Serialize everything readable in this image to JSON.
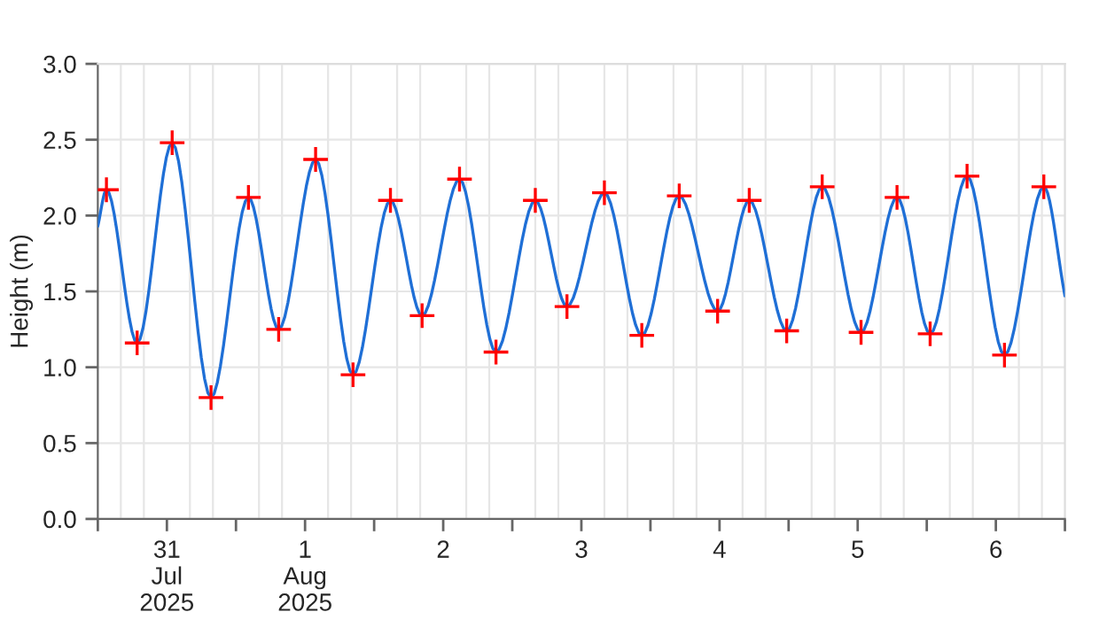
{
  "chart_data": {
    "type": "line",
    "ylabel": "Height (m)",
    "xlim": [
      "2025-07-31T00:00",
      "2025-08-07T00:00"
    ],
    "ylim": [
      0,
      3
    ],
    "yticks": [
      {
        "value": 0,
        "label": "0.0"
      },
      {
        "value": 0.5,
        "label": "0.5"
      },
      {
        "value": 1,
        "label": "1.0"
      },
      {
        "value": 1.5,
        "label": "1.5"
      },
      {
        "value": 2,
        "label": "2.0"
      },
      {
        "value": 2.5,
        "label": "2.5"
      },
      {
        "value": 3,
        "label": "3.0"
      }
    ],
    "xticks": [
      {
        "value": "2025-07-31T00:00",
        "label": null
      },
      {
        "value": "2025-07-31T12:00",
        "label": "31\nJul\n2025"
      },
      {
        "value": "2025-08-01T00:00",
        "label": null
      },
      {
        "value": "2025-08-01T12:00",
        "label": "1\nAug\n2025"
      },
      {
        "value": "2025-08-02T00:00",
        "label": null
      },
      {
        "value": "2025-08-02T12:00",
        "label": "2"
      },
      {
        "value": "2025-08-03T00:00",
        "label": null
      },
      {
        "value": "2025-08-03T12:00",
        "label": "3"
      },
      {
        "value": "2025-08-04T00:00",
        "label": null
      },
      {
        "value": "2025-08-04T12:00",
        "label": "4"
      },
      {
        "value": "2025-08-05T00:00",
        "label": null
      },
      {
        "value": "2025-08-05T12:00",
        "label": "5"
      },
      {
        "value": "2025-08-06T00:00",
        "label": null
      },
      {
        "value": "2025-08-06T12:00",
        "label": "6"
      },
      {
        "value": "2025-08-07T00:00",
        "label": null
      }
    ],
    "grid": true,
    "series": [
      {
        "type": "line",
        "color": "#1f6fd6",
        "line_style": "solid",
        "x": [
          "2025-07-31T00:00",
          "2025-07-31T01:30",
          "2025-07-31T06:50",
          "2025-07-31T12:55",
          "2025-07-31T19:40",
          "2025-08-01T02:10",
          "2025-08-01T07:25",
          "2025-08-01T13:50",
          "2025-08-01T20:20",
          "2025-08-02T02:50",
          "2025-08-02T08:20",
          "2025-08-02T14:50",
          "2025-08-02T21:10",
          "2025-08-03T04:00",
          "2025-08-03T09:30",
          "2025-08-03T16:00",
          "2025-08-03T22:30",
          "2025-08-04T05:00",
          "2025-08-04T11:40",
          "2025-08-04T17:10",
          "2025-08-04T23:40",
          "2025-08-05T05:50",
          "2025-08-05T12:35",
          "2025-08-05T18:50",
          "2025-08-06T00:35",
          "2025-08-06T07:00",
          "2025-08-06T13:30",
          "2025-08-06T20:20",
          "2025-08-07T00:00"
        ],
        "values": [
          1.93,
          2.17,
          1.16,
          2.48,
          0.8,
          2.12,
          1.25,
          2.37,
          0.95,
          2.1,
          1.34,
          2.24,
          1.1,
          2.1,
          1.4,
          2.15,
          1.21,
          2.13,
          1.37,
          2.1,
          1.24,
          2.19,
          1.23,
          2.12,
          1.22,
          2.26,
          1.08,
          2.19,
          1.47
        ]
      },
      {
        "type": "scatter",
        "color": "#ff0000",
        "marker": "cross",
        "x": [
          "2025-07-31T01:30",
          "2025-07-31T06:50",
          "2025-07-31T12:55",
          "2025-07-31T19:40",
          "2025-08-01T02:10",
          "2025-08-01T07:25",
          "2025-08-01T13:50",
          "2025-08-01T20:20",
          "2025-08-02T02:50",
          "2025-08-02T08:20",
          "2025-08-02T14:50",
          "2025-08-02T21:10",
          "2025-08-03T04:00",
          "2025-08-03T09:30",
          "2025-08-03T16:00",
          "2025-08-03T22:30",
          "2025-08-04T05:00",
          "2025-08-04T11:40",
          "2025-08-04T17:10",
          "2025-08-04T23:40",
          "2025-08-05T05:50",
          "2025-08-05T12:35",
          "2025-08-05T18:50",
          "2025-08-06T00:35",
          "2025-08-06T07:00",
          "2025-08-06T13:30",
          "2025-08-06T20:20"
        ],
        "values": [
          2.17,
          1.16,
          2.48,
          0.8,
          2.12,
          1.25,
          2.37,
          0.95,
          2.1,
          1.34,
          2.24,
          1.1,
          2.1,
          1.4,
          2.15,
          1.21,
          2.13,
          1.37,
          2.1,
          1.24,
          2.19,
          1.23,
          2.12,
          1.22,
          2.26,
          1.08,
          2.19
        ]
      }
    ]
  }
}
